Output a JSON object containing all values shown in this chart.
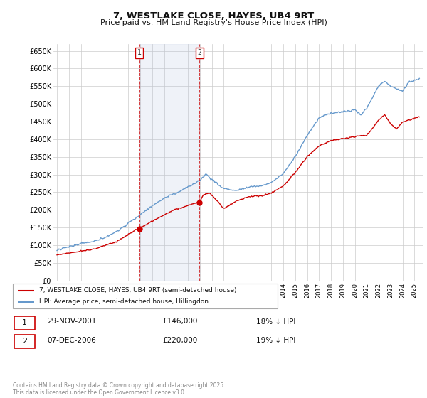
{
  "title": "7, WESTLAKE CLOSE, HAYES, UB4 9RT",
  "subtitle": "Price paid vs. HM Land Registry's House Price Index (HPI)",
  "background_color": "#ffffff",
  "plot_bg_color": "#ffffff",
  "grid_color": "#cccccc",
  "hpi_color": "#6699cc",
  "hpi_fill_color": "#ddeeff",
  "price_color": "#cc0000",
  "shade_color": "#ddeeff",
  "ylim": [
    0,
    670000
  ],
  "yticks": [
    0,
    50000,
    100000,
    150000,
    200000,
    250000,
    300000,
    350000,
    400000,
    450000,
    500000,
    550000,
    600000,
    650000
  ],
  "sale1_year": 2001.917,
  "sale1_price": 146000,
  "sale2_year": 2006.958,
  "sale2_price": 220000,
  "legend_label_red": "7, WESTLAKE CLOSE, HAYES, UB4 9RT (semi-detached house)",
  "legend_label_blue": "HPI: Average price, semi-detached house, Hillingdon",
  "footnote": "Contains HM Land Registry data © Crown copyright and database right 2025.\nThis data is licensed under the Open Government Licence v3.0.",
  "table_row1": [
    "1",
    "29-NOV-2001",
    "£146,000",
    "18% ↓ HPI"
  ],
  "table_row2": [
    "2",
    "07-DEC-2006",
    "£220,000",
    "19% ↓ HPI"
  ],
  "xmin": 1994.7,
  "xmax": 2025.7
}
